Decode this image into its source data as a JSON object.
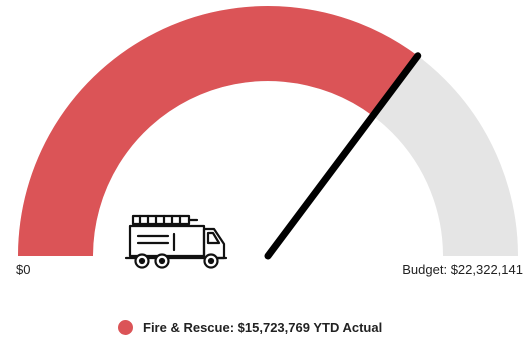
{
  "chart_data": {
    "type": "gauge",
    "min": 0,
    "max": 22322141,
    "value": 15723769,
    "min_label": "$0",
    "max_label": "Budget: $22,322,141",
    "series": [
      {
        "name": "Fire & Rescue",
        "value_label": "$15,723,769",
        "suffix": "YTD Actual"
      }
    ]
  },
  "colors": {
    "fill": "#db5457",
    "track": "#e5e5e5",
    "needle": "#000000"
  },
  "icon": "fire-truck-icon"
}
